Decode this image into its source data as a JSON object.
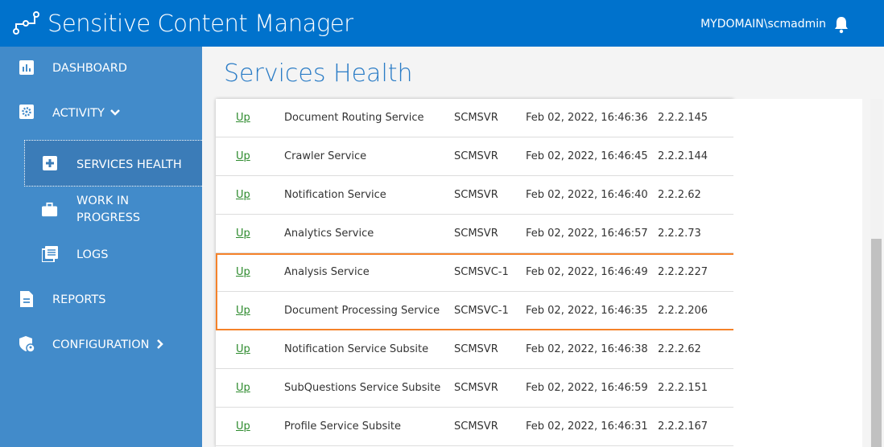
{
  "header": {
    "title": "Sensitive Content Manager",
    "user": "MYDOMAIN\\scmadmin",
    "icons": [
      "logo-icon",
      "bell-icon"
    ]
  },
  "sidebar": {
    "items": [
      {
        "label": "DASHBOARD",
        "icon": "bar-chart-icon"
      },
      {
        "label": "ACTIVITY",
        "icon": "gear-icon"
      },
      {
        "label": "SERVICES HEALTH",
        "icon": "plus-square-icon"
      },
      {
        "label": "WORK IN",
        "label2": "PROGRESS",
        "icon": "briefcase-icon"
      },
      {
        "label": "LOGS",
        "icon": "logs-icon"
      },
      {
        "label": "REPORTS",
        "icon": "document-icon"
      },
      {
        "label": "CONFIGURATION",
        "icon": "shield-user-icon"
      }
    ]
  },
  "main": {
    "title": "Services Health",
    "rows": [
      {
        "status": "Up",
        "name": "Document Routing Service",
        "server": "SCMSVR",
        "time": "Feb 02, 2022, 16:46:36",
        "version": "2.2.2.145"
      },
      {
        "status": "Up",
        "name": "Crawler Service",
        "server": "SCMSVR",
        "time": "Feb 02, 2022, 16:46:45",
        "version": "2.2.2.144"
      },
      {
        "status": "Up",
        "name": "Notification Service",
        "server": "SCMSVR",
        "time": "Feb 02, 2022, 16:46:40",
        "version": "2.2.2.62"
      },
      {
        "status": "Up",
        "name": "Analytics Service",
        "server": "SCMSVR",
        "time": "Feb 02, 2022, 16:46:57",
        "version": "2.2.2.73"
      },
      {
        "status": "Up",
        "name": "Analysis Service",
        "server": "SCMSVC-1",
        "time": "Feb 02, 2022, 16:46:49",
        "version": "2.2.2.227"
      },
      {
        "status": "Up",
        "name": "Document Processing Service",
        "server": "SCMSVC-1",
        "time": "Feb 02, 2022, 16:46:35",
        "version": "2.2.2.206"
      },
      {
        "status": "Up",
        "name": "Notification Service Subsite",
        "server": "SCMSVR",
        "time": "Feb 02, 2022, 16:46:38",
        "version": "2.2.2.62"
      },
      {
        "status": "Up",
        "name": "SubQuestions Service Subsite",
        "server": "SCMSVR",
        "time": "Feb 02, 2022, 16:46:59",
        "version": "2.2.2.151"
      },
      {
        "status": "Up",
        "name": "Profile Service Subsite",
        "server": "SCMSVR",
        "time": "Feb 02, 2022, 16:46:31",
        "version": "2.2.2.167"
      }
    ]
  },
  "colors": {
    "header": "#0072cc",
    "sidebar": "#428bca",
    "highlight": "#f5822a",
    "status_up": "#2e8b2e"
  }
}
